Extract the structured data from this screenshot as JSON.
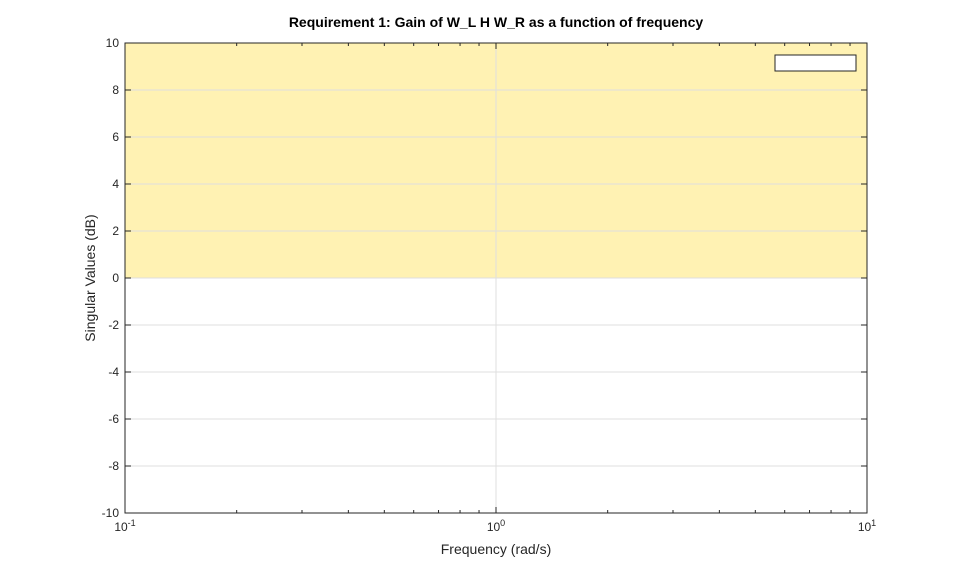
{
  "chart_data": {
    "type": "area",
    "title": "Requirement 1: Gain of W_L H W_R as a function of frequency",
    "xlabel": "Frequency (rad/s)",
    "ylabel": "Singular Values (dB)",
    "xscale": "log",
    "xlim": [
      0.1,
      10
    ],
    "ylim": [
      -10,
      10
    ],
    "x_ticks": [
      {
        "value": 0.1,
        "base": "10",
        "exp": "-1"
      },
      {
        "value": 1,
        "base": "10",
        "exp": "0"
      },
      {
        "value": 10,
        "base": "10",
        "exp": "1"
      }
    ],
    "y_ticks": [
      -10,
      -8,
      -6,
      -4,
      -2,
      0,
      2,
      4,
      6,
      8,
      10
    ],
    "y_tick_labels": [
      "-10",
      "-8",
      "-6",
      "-4",
      "-2",
      "0",
      "2",
      "4",
      "6",
      "8",
      "10"
    ],
    "grid": true,
    "legend": {
      "placement": "top-right",
      "entries": []
    },
    "regions": [
      {
        "x_range": [
          0.1,
          10
        ],
        "y_range": [
          0,
          10
        ],
        "color": "#fff2b3",
        "edge_color": "#f0cd69"
      }
    ],
    "colors": {
      "axes": "#262626",
      "grid": "#dfdfdf",
      "exceeded_region": "#fff2b3"
    }
  }
}
